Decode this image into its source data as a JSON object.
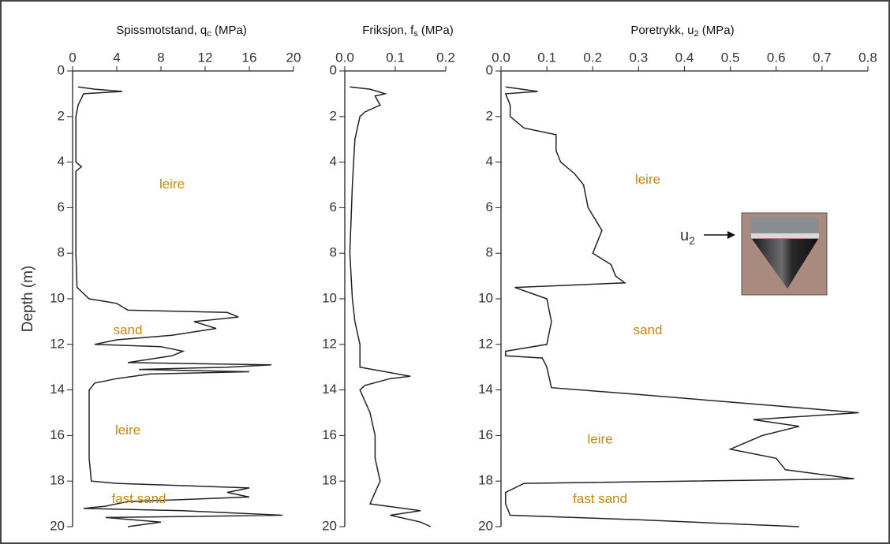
{
  "chart_data": [
    {
      "type": "line",
      "title": [
        "Spissmotstand, q",
        "c",
        " (MPa)"
      ],
      "y_label": "Depth (m)",
      "xlim": [
        0,
        20
      ],
      "xticks": [
        0,
        4,
        8,
        12,
        16,
        20
      ],
      "ylim": [
        0,
        20
      ],
      "yticks": [
        0,
        2,
        4,
        6,
        8,
        10,
        12,
        14,
        16,
        18,
        20
      ],
      "y_inverted": true,
      "color": "#222222",
      "x": [
        0.7,
        0.8,
        0.9,
        1.0,
        1.5,
        2,
        3,
        4,
        4.2,
        4.4,
        6,
        8,
        9.5,
        10,
        10.2,
        10.5,
        10.6,
        10.8,
        11,
        11.3,
        11.6,
        11.8,
        12,
        12.1,
        12.3,
        12.5,
        12.8,
        12.9,
        13,
        13.1,
        13.2,
        13.3,
        13.5,
        13.7,
        14,
        15,
        16,
        17,
        18,
        18.1,
        18.3,
        18.5,
        18.7,
        18.9,
        19.1,
        19.2,
        19.3,
        19.5,
        19.6,
        19.8,
        20
      ],
      "values": [
        0.5,
        2,
        4.5,
        1,
        0.5,
        0.3,
        0.3,
        0.3,
        0.8,
        0.3,
        0.3,
        0.3,
        0.4,
        1.5,
        4,
        5,
        14,
        15,
        11,
        13,
        9,
        4,
        2,
        8,
        10,
        9,
        5,
        18,
        14,
        6,
        16,
        7,
        4,
        2,
        1.5,
        1.5,
        1.5,
        1.5,
        1.7,
        4,
        16,
        14,
        16,
        5,
        3,
        1,
        10,
        19,
        3,
        8,
        5
      ],
      "annotations": [
        "leire",
        "sand",
        "leire",
        "fast sand"
      ]
    },
    {
      "type": "line",
      "title": [
        "Friksjon, f",
        "s",
        " (MPa)"
      ],
      "xlim": [
        0,
        0.2
      ],
      "xticks": [
        {
          "value": 0,
          "label": "0.0"
        },
        0.1,
        0.2
      ],
      "ylim": [
        0,
        20
      ],
      "yticks": [
        0,
        2,
        4,
        6,
        8,
        10,
        12,
        14,
        16,
        18,
        20
      ],
      "y_inverted": true,
      "color": "#222222",
      "x": [
        0.7,
        0.8,
        1.0,
        1.1,
        1.5,
        1.8,
        2,
        3,
        5,
        8,
        10,
        11,
        12,
        13,
        13.4,
        13.5,
        13.8,
        14,
        14.5,
        15,
        16,
        17,
        18,
        18.5,
        19,
        19.3,
        19.5,
        19.8,
        20
      ],
      "values": [
        0.01,
        0.05,
        0.08,
        0.06,
        0.07,
        0.04,
        0.03,
        0.02,
        0.015,
        0.01,
        0.015,
        0.02,
        0.03,
        0.03,
        0.13,
        0.09,
        0.04,
        0.03,
        0.04,
        0.05,
        0.06,
        0.06,
        0.07,
        0.06,
        0.05,
        0.15,
        0.09,
        0.15,
        0.17
      ],
      "annotations": []
    },
    {
      "type": "line",
      "title": [
        "Poretrykk, u",
        "2",
        " (MPa)"
      ],
      "xlim": [
        0,
        0.8
      ],
      "xticks": [
        {
          "value": 0,
          "label": "0.0"
        },
        0.1,
        0.2,
        0.3,
        0.4,
        0.5,
        0.6,
        0.7,
        0.8
      ],
      "ylim": [
        0,
        20
      ],
      "yticks": [
        0,
        2,
        4,
        6,
        8,
        10,
        12,
        14,
        16,
        18,
        20
      ],
      "y_inverted": true,
      "color": "#222222",
      "x": [
        0.7,
        0.9,
        1.0,
        1.5,
        2,
        2.5,
        2.8,
        3.5,
        4,
        4.5,
        5,
        6,
        7,
        8,
        8.5,
        9,
        9.3,
        9.5,
        10,
        11,
        12,
        12.3,
        12.5,
        12.6,
        13,
        13.9,
        14.2,
        14.7,
        15,
        15.3,
        15.6,
        16,
        16.6,
        17,
        17.5,
        17.9,
        18.1,
        18.5,
        19,
        19.5,
        19.7,
        20
      ],
      "values": [
        0.01,
        0.08,
        0.01,
        0.02,
        0.02,
        0.05,
        0.12,
        0.12,
        0.13,
        0.16,
        0.18,
        0.19,
        0.22,
        0.2,
        0.24,
        0.25,
        0.27,
        0.03,
        0.1,
        0.11,
        0.1,
        0.01,
        0.01,
        0.09,
        0.1,
        0.11,
        0.3,
        0.6,
        0.78,
        0.55,
        0.65,
        0.57,
        0.5,
        0.6,
        0.62,
        0.77,
        0.05,
        0.01,
        0.01,
        0.02,
        0.3,
        0.65
      ],
      "annotations": [
        "leire",
        "sand",
        "leire",
        "fast sand"
      ]
    }
  ],
  "photo_label": [
    "u",
    "2"
  ]
}
